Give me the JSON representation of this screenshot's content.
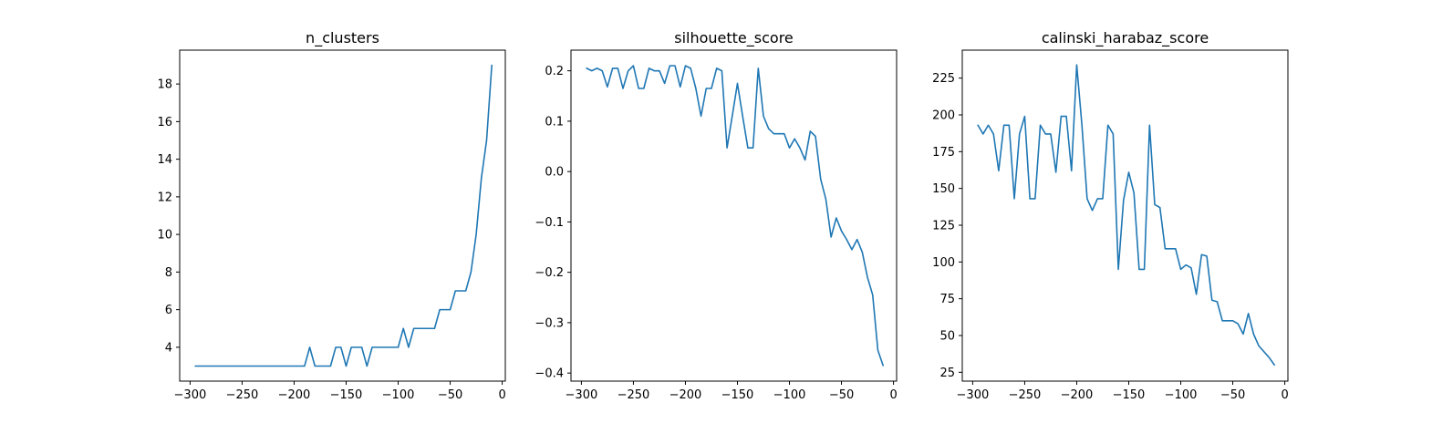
{
  "chart_data": [
    {
      "type": "line",
      "title": "n_clusters",
      "xlabel": "",
      "ylabel": "",
      "xlim": [
        -310,
        3
      ],
      "ylim": [
        2.2,
        19.8
      ],
      "xticks": [
        -300,
        -250,
        -200,
        -150,
        -100,
        -50,
        0
      ],
      "yticks": [
        4,
        6,
        8,
        10,
        12,
        14,
        16,
        18
      ],
      "xtick_labels": [
        "−300",
        "−250",
        "−200",
        "−150",
        "−100",
        "−50",
        "0"
      ],
      "ytick_labels": [
        "4",
        "6",
        "8",
        "10",
        "12",
        "14",
        "16",
        "18"
      ],
      "color": "#1f77b4",
      "x": [
        -295,
        -290,
        -285,
        -280,
        -275,
        -270,
        -265,
        -260,
        -255,
        -250,
        -245,
        -240,
        -235,
        -230,
        -225,
        -220,
        -215,
        -210,
        -205,
        -200,
        -195,
        -190,
        -185,
        -180,
        -175,
        -170,
        -165,
        -160,
        -155,
        -150,
        -145,
        -140,
        -135,
        -130,
        -125,
        -120,
        -115,
        -110,
        -105,
        -100,
        -95,
        -90,
        -85,
        -80,
        -75,
        -70,
        -65,
        -60,
        -55,
        -50,
        -45,
        -40,
        -35,
        -30,
        -25,
        -20,
        -15,
        -10
      ],
      "y": [
        3,
        3,
        3,
        3,
        3,
        3,
        3,
        3,
        3,
        3,
        3,
        3,
        3,
        3,
        3,
        3,
        3,
        3,
        3,
        3,
        3,
        3,
        4,
        3,
        3,
        3,
        3,
        4,
        4,
        3,
        4,
        4,
        4,
        3,
        4,
        4,
        4,
        4,
        4,
        4,
        5,
        4,
        5,
        5,
        5,
        5,
        5,
        6,
        6,
        6,
        7,
        7,
        7,
        8,
        10,
        13,
        15,
        19
      ]
    },
    {
      "type": "line",
      "title": "silhouette_score",
      "xlabel": "",
      "ylabel": "",
      "xlim": [
        -310,
        3
      ],
      "ylim": [
        -0.416,
        0.241
      ],
      "xticks": [
        -300,
        -250,
        -200,
        -150,
        -100,
        -50,
        0
      ],
      "yticks": [
        -0.4,
        -0.3,
        -0.2,
        -0.1,
        0.0,
        0.1,
        0.2
      ],
      "xtick_labels": [
        "−300",
        "−250",
        "−200",
        "−150",
        "−100",
        "−50",
        "0"
      ],
      "ytick_labels": [
        "−0.4",
        "−0.3",
        "−0.2",
        "−0.1",
        "0.0",
        "0.1",
        "0.2"
      ],
      "color": "#1f77b4",
      "x": [
        -295,
        -290,
        -285,
        -280,
        -275,
        -270,
        -265,
        -260,
        -255,
        -250,
        -245,
        -240,
        -235,
        -230,
        -225,
        -220,
        -215,
        -210,
        -205,
        -200,
        -195,
        -190,
        -185,
        -180,
        -175,
        -170,
        -165,
        -160,
        -155,
        -150,
        -145,
        -140,
        -135,
        -130,
        -125,
        -120,
        -115,
        -110,
        -105,
        -100,
        -95,
        -90,
        -85,
        -80,
        -75,
        -70,
        -65,
        -60,
        -55,
        -50,
        -45,
        -40,
        -35,
        -30,
        -25,
        -20,
        -15,
        -10
      ],
      "y": [
        0.205,
        0.2,
        0.205,
        0.2,
        0.168,
        0.205,
        0.205,
        0.165,
        0.2,
        0.21,
        0.165,
        0.165,
        0.205,
        0.2,
        0.2,
        0.175,
        0.21,
        0.21,
        0.168,
        0.21,
        0.205,
        0.165,
        0.11,
        0.165,
        0.165,
        0.205,
        0.2,
        0.047,
        0.11,
        0.175,
        0.11,
        0.047,
        0.047,
        0.205,
        0.11,
        0.085,
        0.075,
        0.075,
        0.075,
        0.047,
        0.065,
        0.047,
        0.023,
        0.08,
        0.07,
        -0.015,
        -0.055,
        -0.13,
        -0.092,
        -0.118,
        -0.135,
        -0.155,
        -0.135,
        -0.16,
        -0.21,
        -0.245,
        -0.355,
        -0.385
      ]
    },
    {
      "type": "line",
      "title": "calinski_harabaz_score",
      "xlabel": "",
      "ylabel": "",
      "xlim": [
        -310,
        3
      ],
      "ylim": [
        19,
        244
      ],
      "xticks": [
        -300,
        -250,
        -200,
        -150,
        -100,
        -50,
        0
      ],
      "yticks": [
        25,
        50,
        75,
        100,
        125,
        150,
        175,
        200,
        225
      ],
      "xtick_labels": [
        "−300",
        "−250",
        "−200",
        "−150",
        "−100",
        "−50",
        "0"
      ],
      "ytick_labels": [
        "25",
        "50",
        "75",
        "100",
        "125",
        "150",
        "175",
        "200",
        "225"
      ],
      "color": "#1f77b4",
      "x": [
        -295,
        -290,
        -285,
        -280,
        -275,
        -270,
        -265,
        -260,
        -255,
        -250,
        -245,
        -240,
        -235,
        -230,
        -225,
        -220,
        -215,
        -210,
        -205,
        -200,
        -195,
        -190,
        -185,
        -180,
        -175,
        -170,
        -165,
        -160,
        -155,
        -150,
        -145,
        -140,
        -135,
        -130,
        -125,
        -120,
        -115,
        -110,
        -105,
        -100,
        -95,
        -90,
        -85,
        -80,
        -75,
        -70,
        -65,
        -60,
        -55,
        -50,
        -45,
        -40,
        -35,
        -30,
        -25,
        -20,
        -15,
        -10
      ],
      "y": [
        193,
        187,
        193,
        187,
        162,
        193,
        193,
        143,
        187,
        199,
        143,
        143,
        193,
        187,
        187,
        161,
        199,
        199,
        162,
        234,
        193,
        143,
        135,
        143,
        143,
        193,
        187,
        95,
        142,
        161,
        147,
        95,
        95,
        193,
        139,
        137,
        109,
        109,
        109,
        95,
        98,
        96,
        78,
        105,
        104,
        74,
        73,
        60,
        60,
        60,
        58,
        51,
        65,
        51,
        43,
        39,
        35,
        30
      ]
    }
  ]
}
